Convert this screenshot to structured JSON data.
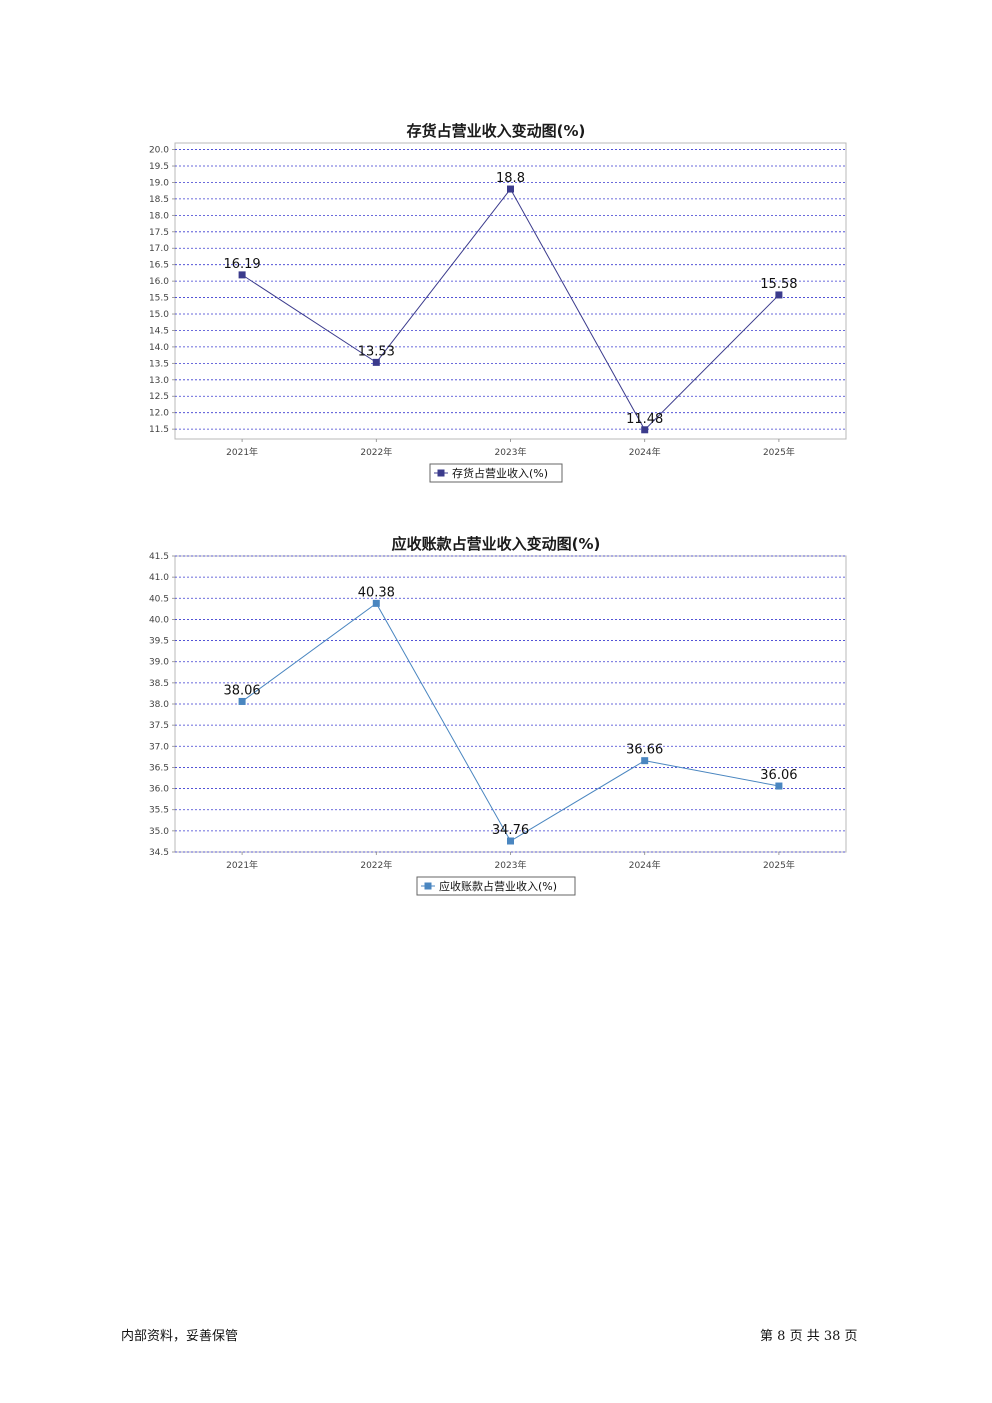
{
  "chart_data": [
    {
      "type": "line",
      "title": "存货占营业收入变动图(%)",
      "categories": [
        "2021年",
        "2022年",
        "2023年",
        "2024年",
        "2025年"
      ],
      "series": [
        {
          "name": "存货占营业收入(%)",
          "values": [
            16.19,
            13.53,
            18.8,
            11.48,
            15.58
          ],
          "color": "#3b3b8c"
        }
      ],
      "ylim": [
        11.2,
        20.2
      ],
      "ticks": [
        "20.0",
        "19.5",
        "19.0",
        "18.5",
        "18.0",
        "17.5",
        "17.0",
        "16.5",
        "16.0",
        "15.5",
        "15.0",
        "14.5",
        "14.0",
        "13.5",
        "13.0",
        "12.5",
        "12.0",
        "11.5"
      ],
      "grid": true,
      "legend": "bottom"
    },
    {
      "type": "line",
      "title": "应收账款占营业收入变动图(%)",
      "categories": [
        "2021年",
        "2022年",
        "2023年",
        "2024年",
        "2025年"
      ],
      "series": [
        {
          "name": "应收账款占营业收入(%)",
          "values": [
            38.06,
            40.38,
            34.76,
            36.66,
            36.06
          ],
          "color": "#4a86c0"
        }
      ],
      "ylim": [
        34.5,
        41.5
      ],
      "ticks": [
        "41.5",
        "41.0",
        "40.5",
        "40.0",
        "39.5",
        "39.0",
        "38.5",
        "38.0",
        "37.5",
        "37.0",
        "36.5",
        "36.0",
        "35.5",
        "35.0",
        "34.5"
      ],
      "grid": true,
      "legend": "bottom"
    }
  ],
  "footer": {
    "left": "内部资料，妥善保管",
    "page_prefix": "第",
    "page_number": "8",
    "page_mid": "页 共",
    "page_total": "38",
    "page_suffix": "页"
  }
}
